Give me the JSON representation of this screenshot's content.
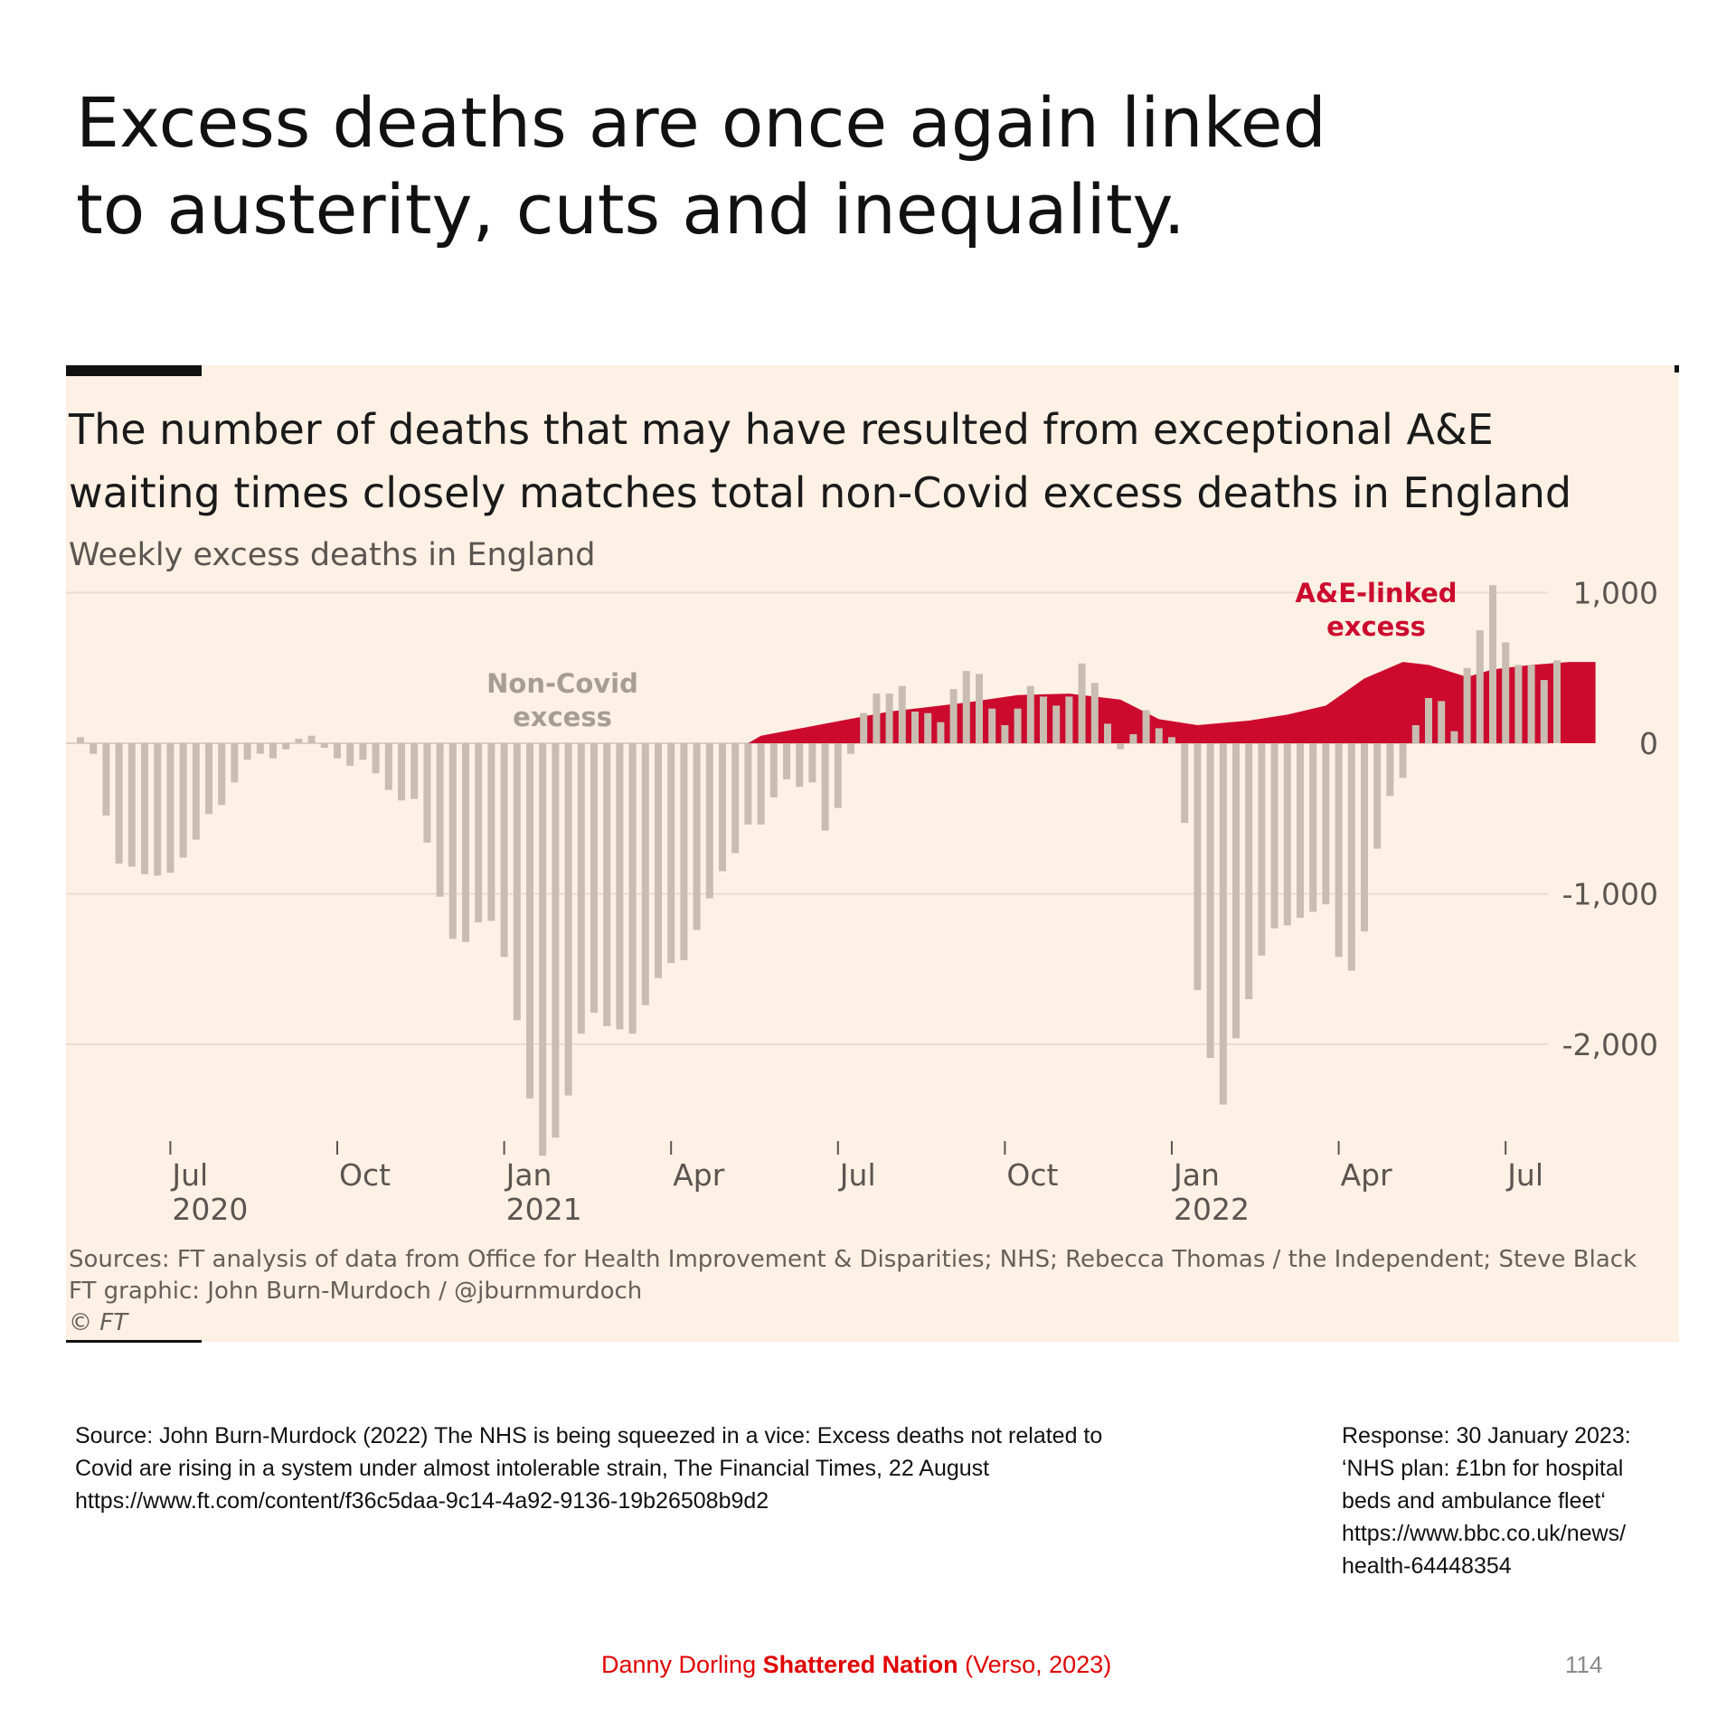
{
  "slide": {
    "title_line1": "Excess deaths are once again linked",
    "title_line2": "to austerity, cuts and inequality."
  },
  "chart_data": {
    "type": "bar",
    "title_line1": "The number of deaths that may have resulted from exceptional A&E",
    "title_line2": "waiting times closely matches total non-Covid excess deaths in England",
    "subtitle": "Weekly excess deaths in England",
    "ylim": [
      -2800,
      1100
    ],
    "y_ticks": [
      1000,
      0,
      -1000,
      -2000
    ],
    "y_tick_labels": [
      "1,000",
      "0",
      "-1,000",
      "-2,000"
    ],
    "x_ticks": [
      {
        "week": 7,
        "label": "Jul",
        "year": "2020"
      },
      {
        "week": 20,
        "label": "Oct",
        "year": ""
      },
      {
        "week": 33,
        "label": "Jan",
        "year": "2021"
      },
      {
        "week": 46,
        "label": "Apr",
        "year": ""
      },
      {
        "week": 59,
        "label": "Jul",
        "year": ""
      },
      {
        "week": 72,
        "label": "Oct",
        "year": ""
      },
      {
        "week": 85,
        "label": "Jan",
        "year": "2022"
      },
      {
        "week": 98,
        "label": "Apr",
        "year": ""
      },
      {
        "week": 111,
        "label": "Jul",
        "year": ""
      }
    ],
    "series": [
      {
        "name": "Non-Covid excess",
        "color": "#c9bcb0",
        "values": [
          40,
          -70,
          -480,
          -800,
          -820,
          -870,
          -880,
          -860,
          -760,
          -640,
          -470,
          -410,
          -260,
          -110,
          -70,
          -100,
          -40,
          30,
          50,
          -30,
          -100,
          -150,
          -110,
          -200,
          -310,
          -380,
          -370,
          -660,
          -1020,
          -1300,
          -1320,
          -1190,
          -1180,
          -1420,
          -1840,
          -2360,
          -2740,
          -2620,
          -2340,
          -1930,
          -1790,
          -1880,
          -1900,
          -1930,
          -1740,
          -1560,
          -1460,
          -1440,
          -1240,
          -1030,
          -850,
          -730,
          -540,
          -540,
          -360,
          -240,
          -290,
          -260,
          -580,
          -430,
          -70,
          200,
          330,
          330,
          380,
          210,
          200,
          140,
          360,
          480,
          460,
          230,
          120,
          230,
          380,
          310,
          250,
          310,
          530,
          400,
          130,
          -40,
          60,
          220,
          100,
          40,
          -530,
          -1640,
          -2090,
          -2400,
          -1960,
          -1700,
          -1410,
          -1230,
          -1210,
          -1160,
          -1120,
          -1070,
          -1420,
          -1510,
          -1250,
          -700,
          -350,
          -230,
          120,
          300,
          280,
          80,
          500,
          750,
          1050,
          670,
          520,
          520,
          420,
          550
        ]
      },
      {
        "name": "A&E-linked excess",
        "color": "#cc0a2e",
        "points": [
          [
            52,
            0
          ],
          [
            53,
            50
          ],
          [
            58,
            130
          ],
          [
            63,
            210
          ],
          [
            69,
            270
          ],
          [
            73,
            320
          ],
          [
            77,
            330
          ],
          [
            81,
            290
          ],
          [
            84,
            160
          ],
          [
            87,
            120
          ],
          [
            91,
            150
          ],
          [
            94,
            190
          ],
          [
            97,
            250
          ],
          [
            100,
            430
          ],
          [
            103,
            540
          ],
          [
            105,
            520
          ],
          [
            108,
            440
          ],
          [
            110,
            490
          ],
          [
            113,
            520
          ],
          [
            116,
            540
          ],
          [
            118,
            540
          ]
        ]
      }
    ],
    "annotations": [
      {
        "line1": "Non-Covid",
        "line2": "excess"
      },
      {
        "line1": "A&E-linked",
        "line2": "excess"
      }
    ],
    "sources_line1": "Sources: FT analysis of data from Office for Health Improvement & Disparities; NHS; Rebecca Thomas / the Independent; Steve Black",
    "sources_line2": "FT graphic: John Burn-Murdoch / @jburnmurdoch",
    "sources_line3": "© FT"
  },
  "notes": {
    "source_line1": "Source: John Burn-Murdock (2022) The NHS is being squeezed in a vice: Excess deaths not related to",
    "source_line2": "Covid are rising in a system under almost intolerable strain, The Financial Times, 22 August",
    "source_line3": "https://www.ft.com/content/f36c5daa-9c14-4a92-9136-19b26508b9d2",
    "response_line1": "Response: 30 January 2023:",
    "response_line2": "‘NHS plan: £1bn for hospital",
    "response_line3": "beds and ambulance fleet‘",
    "response_line4": "https://www.bbc.co.uk/news/",
    "response_line5": "health-64448354"
  },
  "footer": {
    "author": "Danny Dorling ",
    "book": "Shattered Nation",
    "publisher": " (Verso, 2023)",
    "page_number": "114"
  }
}
